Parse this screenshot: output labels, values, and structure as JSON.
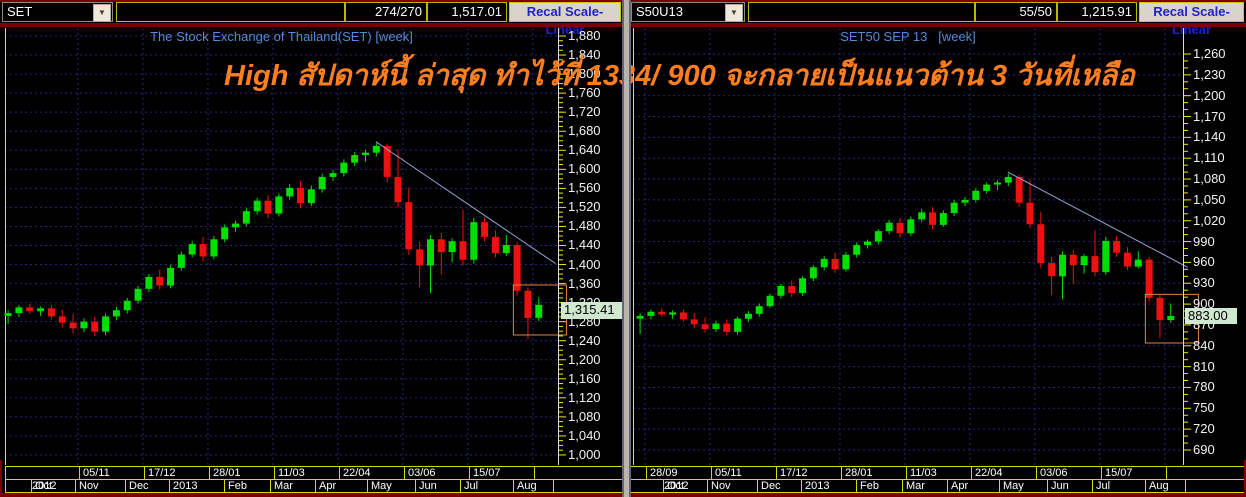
{
  "toolbar_left": {
    "symbol": "SET",
    "field_value": "",
    "high_low": "274/270",
    "last_value": "1,517.01",
    "recal_button": "Recal Scale-Linear"
  },
  "toolbar_right": {
    "symbol": "S50U13",
    "field_value": "",
    "high_low": "55/50",
    "last_value": "1,215.91",
    "recal_button": "Recal Scale-Linear"
  },
  "icons": {
    "dropdown_arrow": "▼"
  },
  "annotation": {
    "text": "High สัปดาห์นี้ ล่าสุด ทำไว้ที่ 1334/ 900 จะกลายเป็นแนวต้าน 3 วันที่เหลือ",
    "color": "#ff7e1e"
  },
  "colors": {
    "up": "#00e000",
    "down": "#ee1111",
    "grid": "#26267c",
    "axis_tick": "#eded00",
    "row_border": "#d9d900",
    "title_blue": "#568bd6",
    "annotation_orange": "#ff7e1e",
    "tag_bg": "#cfe8cf",
    "frame_red": "#7a0000",
    "trendline": "#9aa2d8",
    "highlight_box": "#e8813c",
    "button_text": "#2121cc"
  },
  "chart_data": [
    {
      "type": "candlestick",
      "symbol": "SET",
      "title": "The Stock Exchange of Thailand(SET) [week]",
      "timeframe": "week",
      "last_price": 1315.41,
      "last_price_label": "1,315.41",
      "y_axis": {
        "min": 1000,
        "max": 1880,
        "step": 40,
        "minor_step": 10
      },
      "x_axis": {
        "date_labels": [
          {
            "text": "05/11",
            "week": 6.5
          },
          {
            "text": "17/12",
            "week": 12.5
          },
          {
            "text": "28/01",
            "week": 18.5
          },
          {
            "text": "11/03",
            "week": 24.5
          },
          {
            "text": "22/04",
            "week": 30.5
          },
          {
            "text": "03/06",
            "week": 36.5
          },
          {
            "text": "15/07",
            "week": 42.5
          },
          {
            "text": "",
            "week": 48.5
          }
        ],
        "month_labels": [
          {
            "text": "Oct",
            "week": 2.07
          },
          {
            "text": "Nov",
            "week": 6.13
          },
          {
            "text": "Dec",
            "week": 10.75
          },
          {
            "text": "2013",
            "week": 14.81
          },
          {
            "text": "Feb",
            "week": 19.89
          },
          {
            "text": "Mar",
            "week": 24.14
          },
          {
            "text": "Apr",
            "week": 28.29
          },
          {
            "text": "May",
            "week": 33.09
          },
          {
            "text": "Jun",
            "week": 37.52
          },
          {
            "text": "Jul",
            "week": 41.68
          },
          {
            "text": "Aug",
            "week": 46.57
          },
          {
            "text": "",
            "week": 50.3
          }
        ],
        "year_overlay": "2012"
      },
      "trendline": {
        "from_week": 34,
        "from_price": 1658,
        "to_week": 50.6,
        "to_price": 1402
      },
      "highlight_box": {
        "from_week": 46.7,
        "to_week": 51.6,
        "top_price": 1357,
        "bottom_price": 1252
      },
      "candles_ohlc": [
        [
          1292,
          1304,
          1275,
          1298
        ],
        [
          1298,
          1315,
          1290,
          1310
        ],
        [
          1310,
          1318,
          1297,
          1302
        ],
        [
          1302,
          1312,
          1292,
          1308
        ],
        [
          1308,
          1315,
          1284,
          1291
        ],
        [
          1291,
          1305,
          1268,
          1278
        ],
        [
          1278,
          1296,
          1255,
          1266
        ],
        [
          1266,
          1287,
          1258,
          1280
        ],
        [
          1280,
          1290,
          1250,
          1259
        ],
        [
          1259,
          1297,
          1252,
          1291
        ],
        [
          1291,
          1311,
          1283,
          1304
        ],
        [
          1304,
          1330,
          1297,
          1324
        ],
        [
          1324,
          1355,
          1318,
          1349
        ],
        [
          1349,
          1380,
          1342,
          1374
        ],
        [
          1374,
          1389,
          1347,
          1356
        ],
        [
          1356,
          1399,
          1350,
          1393
        ],
        [
          1393,
          1427,
          1387,
          1421
        ],
        [
          1421,
          1449,
          1415,
          1443
        ],
        [
          1443,
          1458,
          1407,
          1417
        ],
        [
          1417,
          1460,
          1411,
          1453
        ],
        [
          1453,
          1484,
          1447,
          1478
        ],
        [
          1478,
          1492,
          1469,
          1486
        ],
        [
          1486,
          1518,
          1480,
          1512
        ],
        [
          1512,
          1540,
          1505,
          1534
        ],
        [
          1534,
          1546,
          1497,
          1507
        ],
        [
          1507,
          1549,
          1501,
          1543
        ],
        [
          1543,
          1569,
          1536,
          1561
        ],
        [
          1561,
          1575,
          1518,
          1529
        ],
        [
          1529,
          1566,
          1523,
          1558
        ],
        [
          1558,
          1591,
          1551,
          1584
        ],
        [
          1584,
          1599,
          1576,
          1592
        ],
        [
          1592,
          1621,
          1585,
          1614
        ],
        [
          1614,
          1636,
          1607,
          1630
        ],
        [
          1630,
          1641,
          1616,
          1635
        ],
        [
          1635,
          1655,
          1627,
          1649
        ],
        [
          1649,
          1654,
          1573,
          1584
        ],
        [
          1584,
          1641,
          1520,
          1531
        ],
        [
          1531,
          1562,
          1420,
          1432
        ],
        [
          1432,
          1448,
          1352,
          1398
        ],
        [
          1398,
          1462,
          1340,
          1453
        ],
        [
          1453,
          1466,
          1379,
          1426
        ],
        [
          1426,
          1455,
          1405,
          1449
        ],
        [
          1449,
          1515,
          1398,
          1410
        ],
        [
          1410,
          1498,
          1402,
          1489
        ],
        [
          1489,
          1500,
          1448,
          1458
        ],
        [
          1458,
          1472,
          1415,
          1424
        ],
        [
          1424,
          1462,
          1418,
          1441
        ],
        [
          1441,
          1448,
          1335,
          1345
        ],
        [
          1345,
          1352,
          1243,
          1288
        ],
        [
          1288,
          1331,
          1281,
          1315.41
        ]
      ]
    },
    {
      "type": "candlestick",
      "symbol": "S50U13",
      "title": "SET50 SEP 13   [week]",
      "timeframe": "week",
      "last_price": 883.0,
      "last_price_label": "883.00",
      "y_axis": {
        "min": 690,
        "max": 1260,
        "step": 30,
        "minor_step": 10
      },
      "x_axis": {
        "date_labels": [
          {
            "text": "28/09",
            "week": 0.5
          },
          {
            "text": "05/11",
            "week": 6.5
          },
          {
            "text": "17/12",
            "week": 12.5
          },
          {
            "text": "28/01",
            "week": 18.5
          },
          {
            "text": "11/03",
            "week": 24.5
          },
          {
            "text": "22/04",
            "week": 30.5
          },
          {
            "text": "03/06",
            "week": 36.5
          },
          {
            "text": "15/07",
            "week": 42.5
          },
          {
            "text": "",
            "week": 48.5
          }
        ],
        "month_labels": [
          {
            "text": "Oct",
            "week": 2.07
          },
          {
            "text": "Nov",
            "week": 6.13
          },
          {
            "text": "Dec",
            "week": 10.75
          },
          {
            "text": "2013",
            "week": 14.81
          },
          {
            "text": "Feb",
            "week": 19.89
          },
          {
            "text": "Mar",
            "week": 24.14
          },
          {
            "text": "Apr",
            "week": 28.29
          },
          {
            "text": "May",
            "week": 33.09
          },
          {
            "text": "Jun",
            "week": 37.52
          },
          {
            "text": "Jul",
            "week": 41.68
          },
          {
            "text": "Aug",
            "week": 46.57
          },
          {
            "text": "",
            "week": 50.3
          }
        ],
        "year_overlay": "2012"
      },
      "trendline": {
        "from_week": 34,
        "from_price": 1090,
        "to_week": 50.6,
        "to_price": 953
      },
      "highlight_box": {
        "from_week": 46.7,
        "to_week": 51.6,
        "top_price": 914,
        "bottom_price": 844
      },
      "candles_ohlc": [
        [
          879,
          887,
          857,
          883
        ],
        [
          883,
          892,
          878,
          889
        ],
        [
          889,
          894,
          882,
          885
        ],
        [
          885,
          891,
          879,
          888
        ],
        [
          888,
          892,
          875,
          878
        ],
        [
          878,
          887,
          865,
          871
        ],
        [
          871,
          881,
          859,
          864
        ],
        [
          864,
          876,
          860,
          872
        ],
        [
          872,
          878,
          855,
          860
        ],
        [
          860,
          882,
          856,
          879
        ],
        [
          879,
          890,
          874,
          886
        ],
        [
          886,
          901,
          882,
          897
        ],
        [
          897,
          915,
          894,
          912
        ],
        [
          912,
          929,
          908,
          926
        ],
        [
          926,
          934,
          910,
          916
        ],
        [
          916,
          940,
          912,
          937
        ],
        [
          937,
          956,
          933,
          953
        ],
        [
          953,
          969,
          949,
          965
        ],
        [
          965,
          974,
          945,
          950
        ],
        [
          950,
          975,
          947,
          971
        ],
        [
          971,
          989,
          967,
          985
        ],
        [
          985,
          993,
          980,
          990
        ],
        [
          990,
          1008,
          986,
          1005
        ],
        [
          1005,
          1021,
          1001,
          1017
        ],
        [
          1017,
          1024,
          996,
          1002
        ],
        [
          1002,
          1026,
          998,
          1022
        ],
        [
          1022,
          1037,
          1018,
          1032
        ],
        [
          1032,
          1040,
          1008,
          1014
        ],
        [
          1014,
          1035,
          1011,
          1031
        ],
        [
          1031,
          1050,
          1027,
          1046
        ],
        [
          1046,
          1054,
          1041,
          1050
        ],
        [
          1050,
          1067,
          1046,
          1063
        ],
        [
          1063,
          1075,
          1059,
          1072
        ],
        [
          1072,
          1078,
          1064,
          1075
        ],
        [
          1075,
          1088,
          1070,
          1083
        ],
        [
          1083,
          1086,
          1040,
          1046
        ],
        [
          1046,
          1078,
          1009,
          1015
        ],
        [
          1015,
          1033,
          952,
          959
        ],
        [
          959,
          968,
          913,
          940
        ],
        [
          940,
          976,
          907,
          971
        ],
        [
          971,
          978,
          929,
          956
        ],
        [
          956,
          972,
          944,
          969
        ],
        [
          969,
          1006,
          940,
          946
        ],
        [
          946,
          997,
          942,
          991
        ],
        [
          991,
          998,
          968,
          974
        ],
        [
          974,
          982,
          949,
          954
        ],
        [
          954,
          976,
          951,
          964
        ],
        [
          964,
          968,
          904,
          909
        ],
        [
          909,
          913,
          851,
          877
        ],
        [
          877,
          901,
          873,
          883
        ]
      ]
    }
  ]
}
